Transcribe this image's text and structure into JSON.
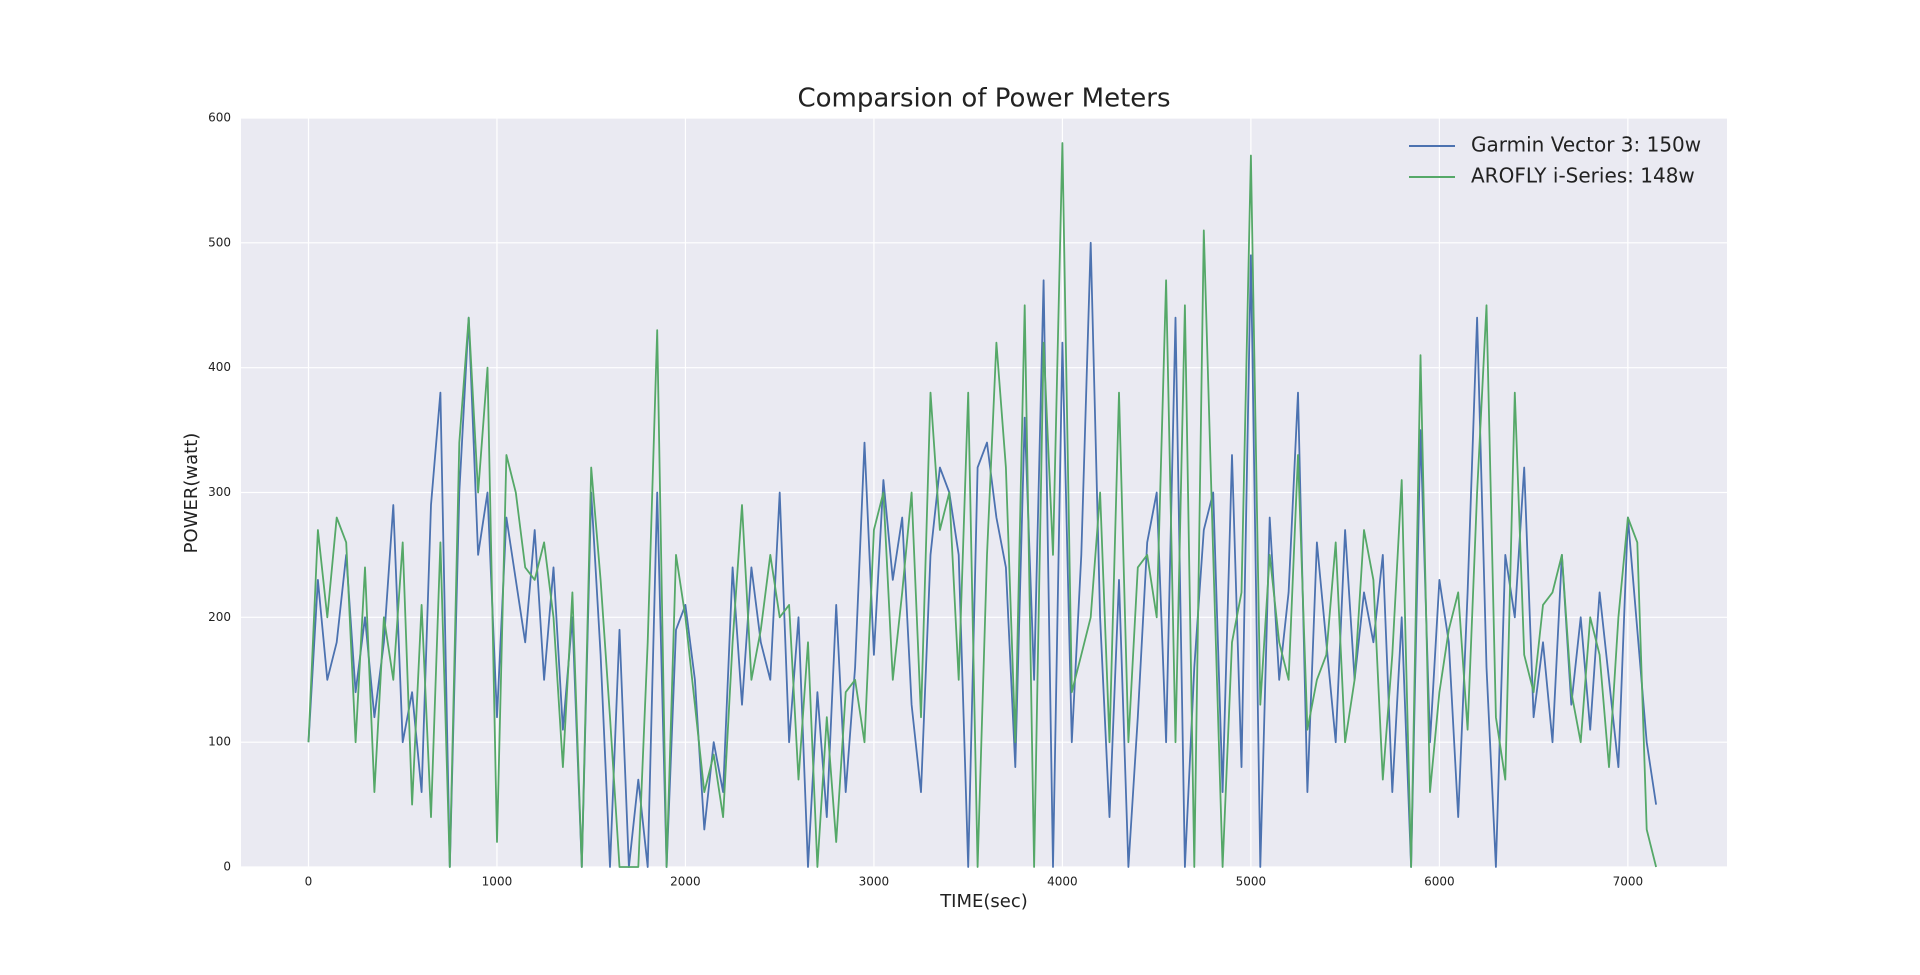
{
  "chart_data": {
    "type": "line",
    "title": "Comparsion of Power Meters",
    "xlabel": "TIME(sec)",
    "ylabel": "POWER(watt)",
    "x": [
      0,
      50,
      100,
      150,
      200,
      250,
      300,
      350,
      400,
      450,
      500,
      550,
      600,
      650,
      700,
      750,
      800,
      850,
      900,
      950,
      1000,
      1050,
      1100,
      1150,
      1200,
      1250,
      1300,
      1350,
      1400,
      1450,
      1500,
      1550,
      1600,
      1650,
      1700,
      1750,
      1800,
      1850,
      1900,
      1950,
      2000,
      2050,
      2100,
      2150,
      2200,
      2250,
      2300,
      2350,
      2400,
      2450,
      2500,
      2550,
      2600,
      2650,
      2700,
      2750,
      2800,
      2850,
      2900,
      2950,
      3000,
      3050,
      3100,
      3150,
      3200,
      3250,
      3300,
      3350,
      3400,
      3450,
      3500,
      3550,
      3600,
      3650,
      3700,
      3750,
      3800,
      3850,
      3900,
      3950,
      4000,
      4050,
      4100,
      4150,
      4200,
      4250,
      4300,
      4350,
      4400,
      4450,
      4500,
      4550,
      4600,
      4650,
      4700,
      4750,
      4800,
      4850,
      4900,
      4950,
      5000,
      5050,
      5100,
      5150,
      5200,
      5250,
      5300,
      5350,
      5400,
      5450,
      5500,
      5550,
      5600,
      5650,
      5700,
      5750,
      5800,
      5850,
      5900,
      5950,
      6000,
      6050,
      6100,
      6150,
      6200,
      6250,
      6300,
      6350,
      6400,
      6450,
      6500,
      6550,
      6600,
      6650,
      6700,
      6750,
      6800,
      6850,
      6900,
      6950,
      7000,
      7050,
      7100,
      7150
    ],
    "series": [
      {
        "name": "Garmin Vector 3: 150w",
        "color": "#4c72b0",
        "values": [
          100,
          230,
          150,
          180,
          250,
          140,
          200,
          120,
          180,
          290,
          100,
          140,
          60,
          290,
          380,
          0,
          300,
          440,
          250,
          300,
          120,
          280,
          230,
          180,
          270,
          150,
          240,
          110,
          200,
          0,
          300,
          170,
          0,
          190,
          0,
          70,
          0,
          300,
          0,
          190,
          210,
          150,
          30,
          100,
          60,
          240,
          130,
          240,
          180,
          150,
          300,
          100,
          200,
          0,
          140,
          40,
          210,
          60,
          160,
          340,
          170,
          310,
          230,
          280,
          130,
          60,
          250,
          320,
          300,
          250,
          0,
          320,
          340,
          280,
          240,
          80,
          360,
          150,
          470,
          0,
          420,
          100,
          250,
          500,
          200,
          40,
          230,
          0,
          120,
          260,
          300,
          100,
          440,
          0,
          160,
          270,
          300,
          60,
          330,
          80,
          490,
          0,
          280,
          150,
          220,
          380,
          60,
          260,
          180,
          100,
          270,
          150,
          220,
          180,
          250,
          60,
          200,
          0,
          350,
          100,
          230,
          180,
          40,
          220,
          440,
          160,
          0,
          250,
          200,
          320,
          120,
          180,
          100,
          250,
          130,
          200,
          110,
          220,
          150,
          80,
          280,
          190,
          100,
          50
        ]
      },
      {
        "name": "AROFLY i-Series: 148w",
        "color": "#55a868",
        "values": [
          100,
          270,
          200,
          280,
          260,
          100,
          240,
          60,
          200,
          150,
          260,
          50,
          210,
          40,
          260,
          0,
          340,
          440,
          300,
          400,
          20,
          330,
          300,
          240,
          230,
          260,
          200,
          80,
          220,
          0,
          320,
          230,
          120,
          0,
          0,
          0,
          180,
          430,
          0,
          250,
          200,
          130,
          60,
          90,
          40,
          180,
          290,
          150,
          190,
          250,
          200,
          210,
          70,
          180,
          0,
          120,
          20,
          140,
          150,
          100,
          270,
          300,
          150,
          220,
          300,
          120,
          380,
          270,
          300,
          150,
          380,
          0,
          250,
          420,
          320,
          100,
          450,
          0,
          420,
          250,
          580,
          140,
          170,
          200,
          300,
          100,
          380,
          100,
          240,
          250,
          200,
          470,
          100,
          450,
          0,
          510,
          250,
          0,
          180,
          220,
          570,
          130,
          250,
          180,
          150,
          330,
          110,
          150,
          170,
          260,
          100,
          150,
          270,
          230,
          70,
          170,
          310,
          0,
          410,
          60,
          140,
          190,
          220,
          110,
          300,
          450,
          120,
          70,
          380,
          170,
          140,
          210,
          220,
          250,
          140,
          100,
          200,
          170,
          80,
          200,
          280,
          260,
          30,
          0
        ]
      }
    ],
    "xlim": [
      -358,
      7526
    ],
    "ylim": [
      0,
      600
    ],
    "xticks": [
      0,
      1000,
      2000,
      3000,
      4000,
      5000,
      6000,
      7000
    ],
    "yticks": [
      0,
      100,
      200,
      300,
      400,
      500,
      600
    ],
    "grid": true,
    "legend": "upper right",
    "background": "#eaeaf2"
  }
}
